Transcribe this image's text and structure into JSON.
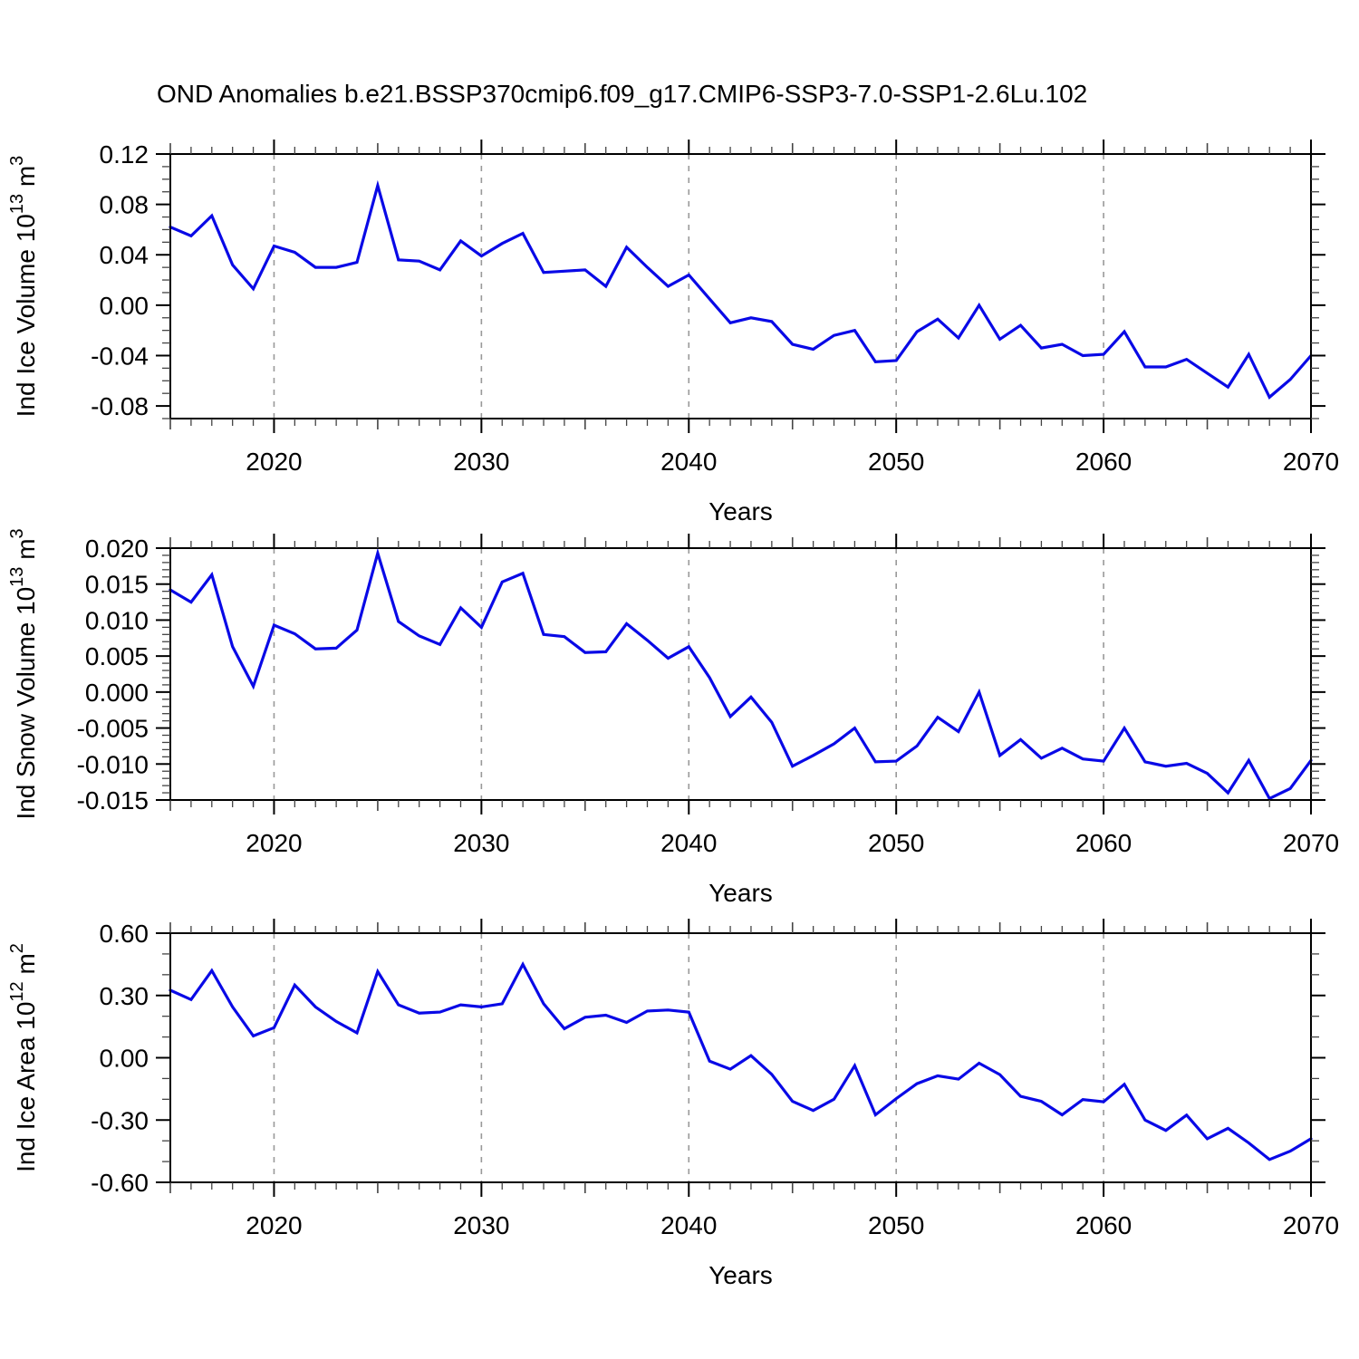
{
  "title": "OND Anomalies b.e21.BSSP370cmip6.f09_g17.CMIP6-SSP3-7.0-SSP1-2.6Lu.102",
  "style": {
    "line_color": "#0909e6",
    "grid_color": "#999999",
    "axis_color": "#000000",
    "minor_tick_color": "#444444",
    "background": "#ffffff"
  },
  "x_axis": {
    "label": "Years",
    "range": [
      2015,
      2070
    ],
    "tick_labels": [
      "2020",
      "2030",
      "2040",
      "2050",
      "2060",
      "2070"
    ],
    "gridline_years": [
      2020,
      2030,
      2040,
      2050,
      2060
    ]
  },
  "years": [
    2015,
    2016,
    2017,
    2018,
    2019,
    2020,
    2021,
    2022,
    2023,
    2024,
    2025,
    2026,
    2027,
    2028,
    2029,
    2030,
    2031,
    2032,
    2033,
    2034,
    2035,
    2036,
    2037,
    2038,
    2039,
    2040,
    2041,
    2042,
    2043,
    2044,
    2045,
    2046,
    2047,
    2048,
    2049,
    2050,
    2051,
    2052,
    2053,
    2054,
    2055,
    2056,
    2057,
    2058,
    2059,
    2060,
    2061,
    2062,
    2063,
    2064,
    2065,
    2066,
    2067,
    2068,
    2069,
    2070
  ],
  "chart_data": [
    {
      "type": "line",
      "name": "ice-volume",
      "ylabel_parts": [
        {
          "t": "Ind Ice Volume 10"
        },
        {
          "t": "13",
          "sup": true
        },
        {
          "t": " m"
        },
        {
          "t": "3",
          "sup": true
        }
      ],
      "ylabel_text": "Ind Ice Volume 10^13 m^3",
      "ylim": [
        -0.09,
        0.12
      ],
      "ytick_minor": 0.01,
      "yticks": [
        {
          "v": 0.12,
          "label": "0.12"
        },
        {
          "v": 0.08,
          "label": "0.08"
        },
        {
          "v": 0.04,
          "label": "0.04"
        },
        {
          "v": 0.0,
          "label": "0.00"
        },
        {
          "v": -0.04,
          "label": "-0.04"
        },
        {
          "v": -0.08,
          "label": "-0.08"
        }
      ],
      "values": [
        0.062,
        0.055,
        0.071,
        0.032,
        0.013,
        0.047,
        0.042,
        0.03,
        0.03,
        0.034,
        0.095,
        0.036,
        0.035,
        0.028,
        0.051,
        0.039,
        0.049,
        0.057,
        0.026,
        0.027,
        0.028,
        0.015,
        0.046,
        0.03,
        0.015,
        0.024,
        0.005,
        -0.014,
        -0.01,
        -0.013,
        -0.031,
        -0.035,
        -0.024,
        -0.02,
        -0.045,
        -0.044,
        -0.021,
        -0.011,
        -0.026,
        0.0,
        -0.027,
        -0.016,
        -0.034,
        -0.031,
        -0.04,
        -0.039,
        -0.021,
        -0.049,
        -0.049,
        -0.043,
        -0.054,
        -0.065,
        -0.039,
        -0.073,
        -0.059,
        -0.04
      ]
    },
    {
      "type": "line",
      "name": "snow-volume",
      "ylabel_parts": [
        {
          "t": "Ind Snow Volume 10"
        },
        {
          "t": "13",
          "sup": true
        },
        {
          "t": " m"
        },
        {
          "t": "3",
          "sup": true
        }
      ],
      "ylabel_text": "Ind Snow Volume 10^13 m^3",
      "ylim": [
        -0.015,
        0.02
      ],
      "ytick_minor": 0.001,
      "yticks": [
        {
          "v": 0.02,
          "label": "0.020"
        },
        {
          "v": 0.015,
          "label": "0.015"
        },
        {
          "v": 0.01,
          "label": "0.010"
        },
        {
          "v": 0.005,
          "label": "0.005"
        },
        {
          "v": 0.0,
          "label": "0.000"
        },
        {
          "v": -0.005,
          "label": "-0.005"
        },
        {
          "v": -0.01,
          "label": "-0.010"
        },
        {
          "v": -0.015,
          "label": "-0.015"
        }
      ],
      "values": [
        0.0142,
        0.0125,
        0.0163,
        0.0063,
        0.0008,
        0.0093,
        0.0081,
        0.006,
        0.0061,
        0.0086,
        0.0193,
        0.0098,
        0.0078,
        0.0066,
        0.0117,
        0.009,
        0.0153,
        0.0165,
        0.008,
        0.0077,
        0.0055,
        0.0056,
        0.0095,
        0.0072,
        0.0047,
        0.0063,
        0.002,
        -0.0034,
        -0.0007,
        -0.0042,
        -0.0103,
        -0.0088,
        -0.0072,
        -0.005,
        -0.0097,
        -0.0096,
        -0.0075,
        -0.0035,
        -0.0055,
        0.0,
        -0.0088,
        -0.0066,
        -0.0092,
        -0.0078,
        -0.0093,
        -0.0096,
        -0.005,
        -0.0097,
        -0.0103,
        -0.0099,
        -0.0113,
        -0.014,
        -0.0095,
        -0.0148,
        -0.0134,
        -0.0095
      ]
    },
    {
      "type": "line",
      "name": "ice-area",
      "ylabel_parts": [
        {
          "t": "Ind Ice Area 10"
        },
        {
          "t": "12",
          "sup": true
        },
        {
          "t": " m"
        },
        {
          "t": "2",
          "sup": true
        }
      ],
      "ylabel_text": "Ind Ice Area 10^12 m^2",
      "ylim": [
        -0.6,
        0.6
      ],
      "ytick_minor": 0.1,
      "yticks": [
        {
          "v": 0.6,
          "label": "0.60"
        },
        {
          "v": 0.3,
          "label": "0.30"
        },
        {
          "v": 0.0,
          "label": "0.00"
        },
        {
          "v": -0.3,
          "label": "-0.30"
        },
        {
          "v": -0.6,
          "label": "-0.60"
        }
      ],
      "values": [
        0.325,
        0.28,
        0.42,
        0.245,
        0.105,
        0.145,
        0.35,
        0.245,
        0.175,
        0.12,
        0.415,
        0.255,
        0.215,
        0.22,
        0.255,
        0.245,
        0.26,
        0.45,
        0.26,
        0.14,
        0.195,
        0.205,
        0.17,
        0.225,
        0.23,
        0.22,
        -0.016,
        -0.055,
        0.01,
        -0.08,
        -0.21,
        -0.254,
        -0.2,
        -0.038,
        -0.275,
        -0.197,
        -0.125,
        -0.087,
        -0.103,
        -0.026,
        -0.081,
        -0.186,
        -0.21,
        -0.275,
        -0.201,
        -0.212,
        -0.128,
        -0.3,
        -0.35,
        -0.276,
        -0.39,
        -0.34,
        -0.41,
        -0.49,
        -0.45,
        -0.39
      ]
    }
  ]
}
